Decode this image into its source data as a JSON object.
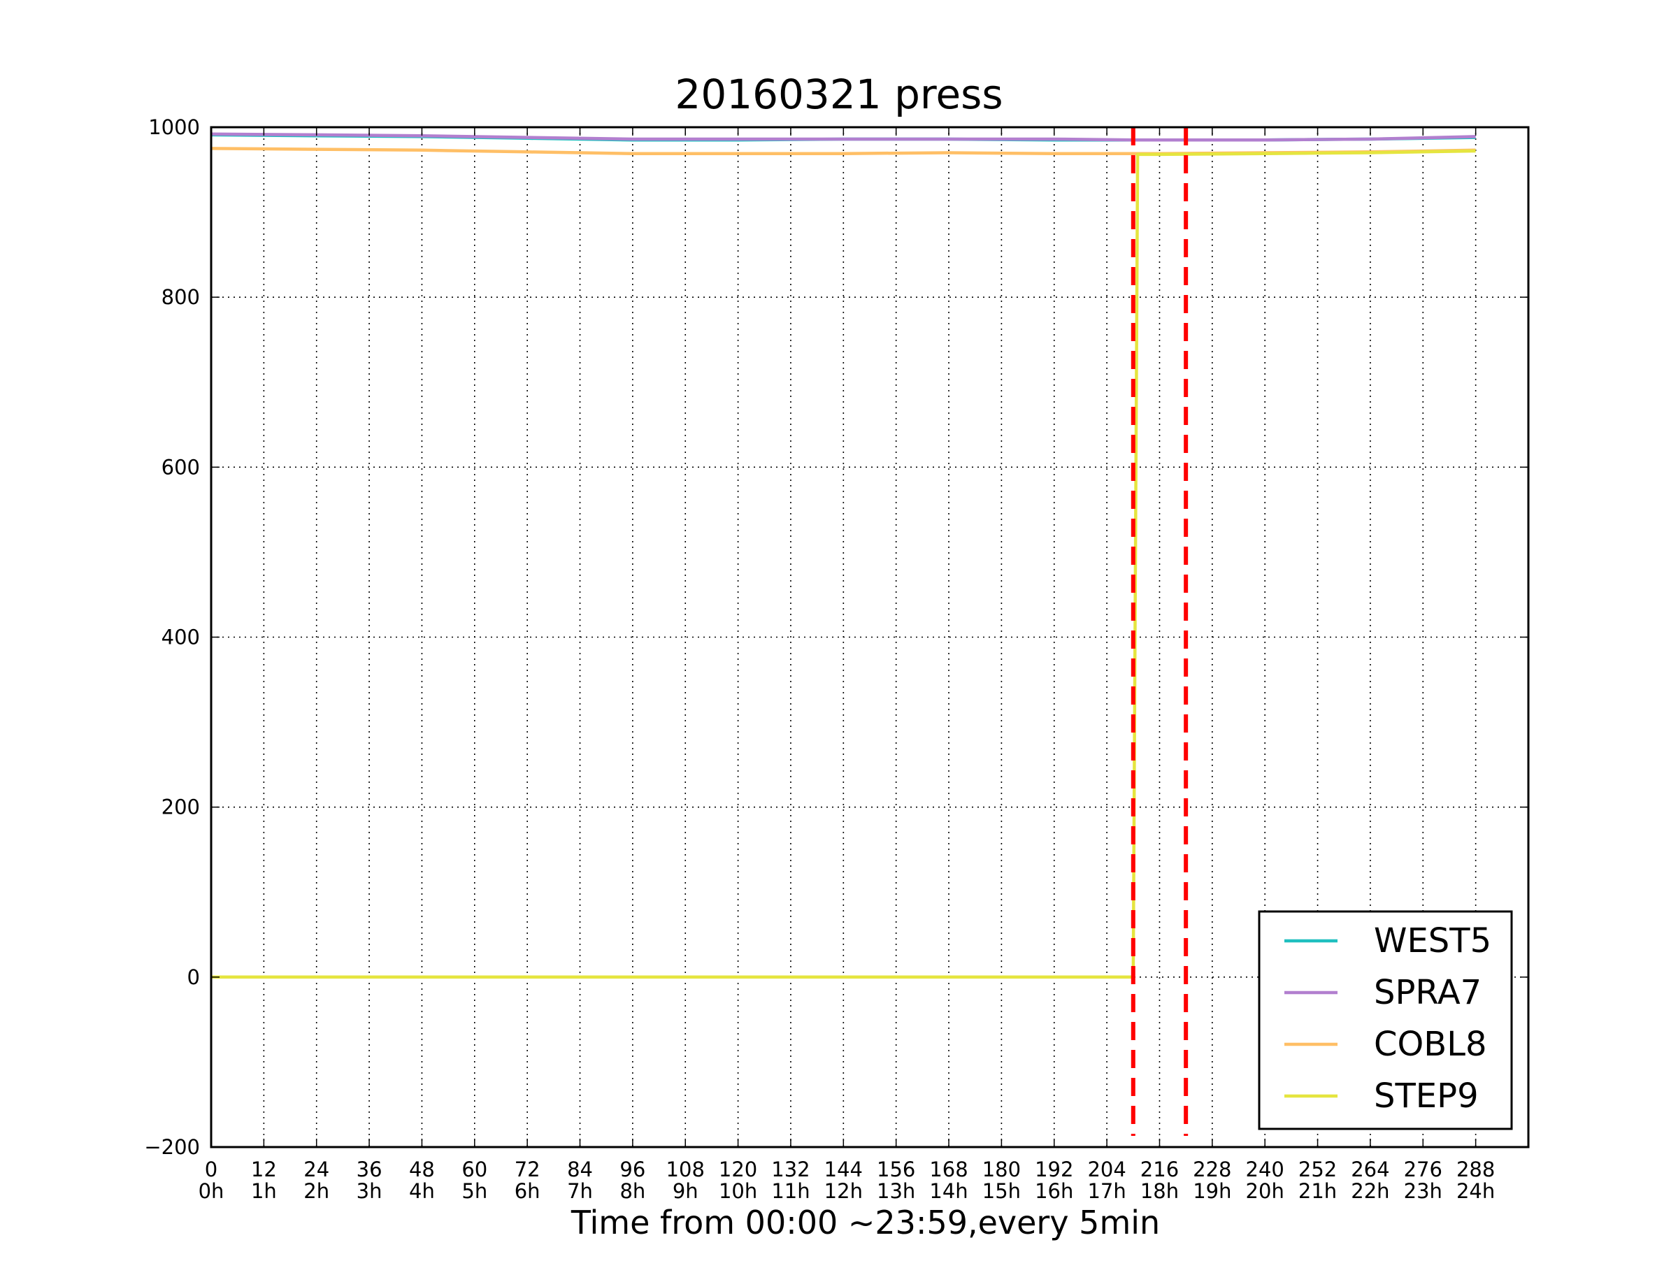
{
  "chart_data": {
    "type": "line",
    "title": "20160321 press",
    "xlabel": "Time from 00:00 ~23:59,every 5min",
    "ylabel": "",
    "xlim": [
      0,
      300
    ],
    "ylim": [
      -200,
      1000
    ],
    "grid": true,
    "grid_style": "dotted",
    "xticks": [
      {
        "value": 0,
        "label": "0",
        "sublabel": "0h"
      },
      {
        "value": 12,
        "label": "12",
        "sublabel": "1h"
      },
      {
        "value": 24,
        "label": "24",
        "sublabel": "2h"
      },
      {
        "value": 36,
        "label": "36",
        "sublabel": "3h"
      },
      {
        "value": 48,
        "label": "48",
        "sublabel": "4h"
      },
      {
        "value": 60,
        "label": "60",
        "sublabel": "5h"
      },
      {
        "value": 72,
        "label": "72",
        "sublabel": "6h"
      },
      {
        "value": 84,
        "label": "84",
        "sublabel": "7h"
      },
      {
        "value": 96,
        "label": "96",
        "sublabel": "8h"
      },
      {
        "value": 108,
        "label": "108",
        "sublabel": "9h"
      },
      {
        "value": 120,
        "label": "120",
        "sublabel": "10h"
      },
      {
        "value": 132,
        "label": "132",
        "sublabel": "11h"
      },
      {
        "value": 144,
        "label": "144",
        "sublabel": "12h"
      },
      {
        "value": 156,
        "label": "156",
        "sublabel": "13h"
      },
      {
        "value": 168,
        "label": "168",
        "sublabel": "14h"
      },
      {
        "value": 180,
        "label": "180",
        "sublabel": "15h"
      },
      {
        "value": 192,
        "label": "192",
        "sublabel": "16h"
      },
      {
        "value": 204,
        "label": "204",
        "sublabel": "17h"
      },
      {
        "value": 216,
        "label": "216",
        "sublabel": "18h"
      },
      {
        "value": 228,
        "label": "228",
        "sublabel": "19h"
      },
      {
        "value": 240,
        "label": "240",
        "sublabel": "20h"
      },
      {
        "value": 252,
        "label": "252",
        "sublabel": "21h"
      },
      {
        "value": 264,
        "label": "264",
        "sublabel": "22h"
      },
      {
        "value": 276,
        "label": "276",
        "sublabel": "23h"
      },
      {
        "value": 288,
        "label": "288",
        "sublabel": "24h"
      }
    ],
    "yticks": [
      {
        "value": -200,
        "label": "−200"
      },
      {
        "value": 0,
        "label": "0"
      },
      {
        "value": 200,
        "label": "200"
      },
      {
        "value": 400,
        "label": "400"
      },
      {
        "value": 600,
        "label": "600"
      },
      {
        "value": 800,
        "label": "800"
      },
      {
        "value": 1000,
        "label": "1000"
      }
    ],
    "legend_position": "lower-right",
    "series": [
      {
        "name": "WEST5",
        "color": "#1fbfbf",
        "x": [
          0,
          24,
          48,
          72,
          96,
          120,
          144,
          168,
          192,
          210,
          216,
          240,
          264,
          288
        ],
        "y": [
          991,
          990,
          989,
          987,
          985,
          985,
          986,
          986,
          985,
          985,
          985,
          985,
          986,
          988
        ]
      },
      {
        "name": "SPRA7",
        "color": "#b27fcf",
        "x": [
          0,
          24,
          48,
          72,
          96,
          120,
          144,
          168,
          192,
          210,
          216,
          240,
          264,
          288
        ],
        "y": [
          992,
          991,
          990,
          988,
          986,
          986,
          986,
          986,
          986,
          985,
          985,
          985,
          986,
          989
        ]
      },
      {
        "name": "COBL8",
        "color": "#ffbf66",
        "x": [
          0,
          24,
          48,
          72,
          96,
          120,
          144,
          168,
          192,
          210,
          216,
          240,
          264,
          288
        ],
        "y": [
          975,
          974,
          973,
          971,
          969,
          969,
          969,
          970,
          969,
          969,
          969,
          970,
          971,
          973
        ]
      },
      {
        "name": "STEP9",
        "color": "#e5e53f",
        "x": [
          0,
          24,
          48,
          72,
          96,
          120,
          144,
          168,
          192,
          204,
          210,
          211,
          216,
          240,
          264,
          288
        ],
        "y": [
          0,
          0,
          0,
          0,
          0,
          0,
          0,
          0,
          0,
          0,
          0,
          968,
          968,
          969,
          970,
          972
        ]
      }
    ],
    "vlines": [
      {
        "x": 210,
        "color": "#ff0000",
        "style": "dashed"
      },
      {
        "x": 222,
        "color": "#ff0000",
        "style": "dashed"
      }
    ]
  }
}
